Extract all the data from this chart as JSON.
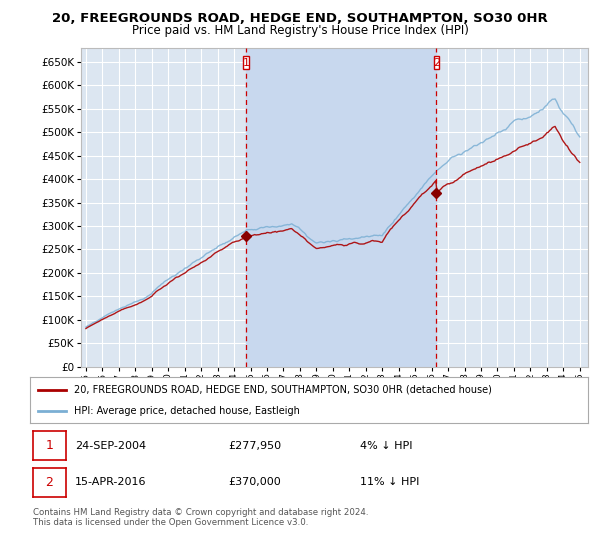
{
  "title": "20, FREEGROUNDS ROAD, HEDGE END, SOUTHAMPTON, SO30 0HR",
  "subtitle": "Price paid vs. HM Land Registry's House Price Index (HPI)",
  "legend_label_red": "20, FREEGROUNDS ROAD, HEDGE END, SOUTHAMPTON, SO30 0HR (detached house)",
  "legend_label_blue": "HPI: Average price, detached house, Eastleigh",
  "transaction1_date": "24-SEP-2004",
  "transaction1_price": "£277,950",
  "transaction1_pct": "4% ↓ HPI",
  "transaction2_date": "15-APR-2016",
  "transaction2_price": "£370,000",
  "transaction2_pct": "11% ↓ HPI",
  "footer": "Contains HM Land Registry data © Crown copyright and database right 2024.\nThis data is licensed under the Open Government Licence v3.0.",
  "ylim": [
    0,
    680000
  ],
  "yticks": [
    0,
    50000,
    100000,
    150000,
    200000,
    250000,
    300000,
    350000,
    400000,
    450000,
    500000,
    550000,
    600000,
    650000
  ],
  "background_color": "#ffffff",
  "plot_bg_color": "#dce6f1",
  "grid_color": "#ffffff",
  "line_color_red": "#aa0000",
  "line_color_blue": "#7bafd4",
  "shade_color": "#c8d8ee",
  "vline_color": "#cc0000",
  "marker_color_red": "#880000",
  "transaction1_x": 2004.73,
  "transaction2_x": 2016.29,
  "transaction1_y": 277950,
  "transaction2_y": 370000,
  "xmin": 1995,
  "xmax": 2025
}
